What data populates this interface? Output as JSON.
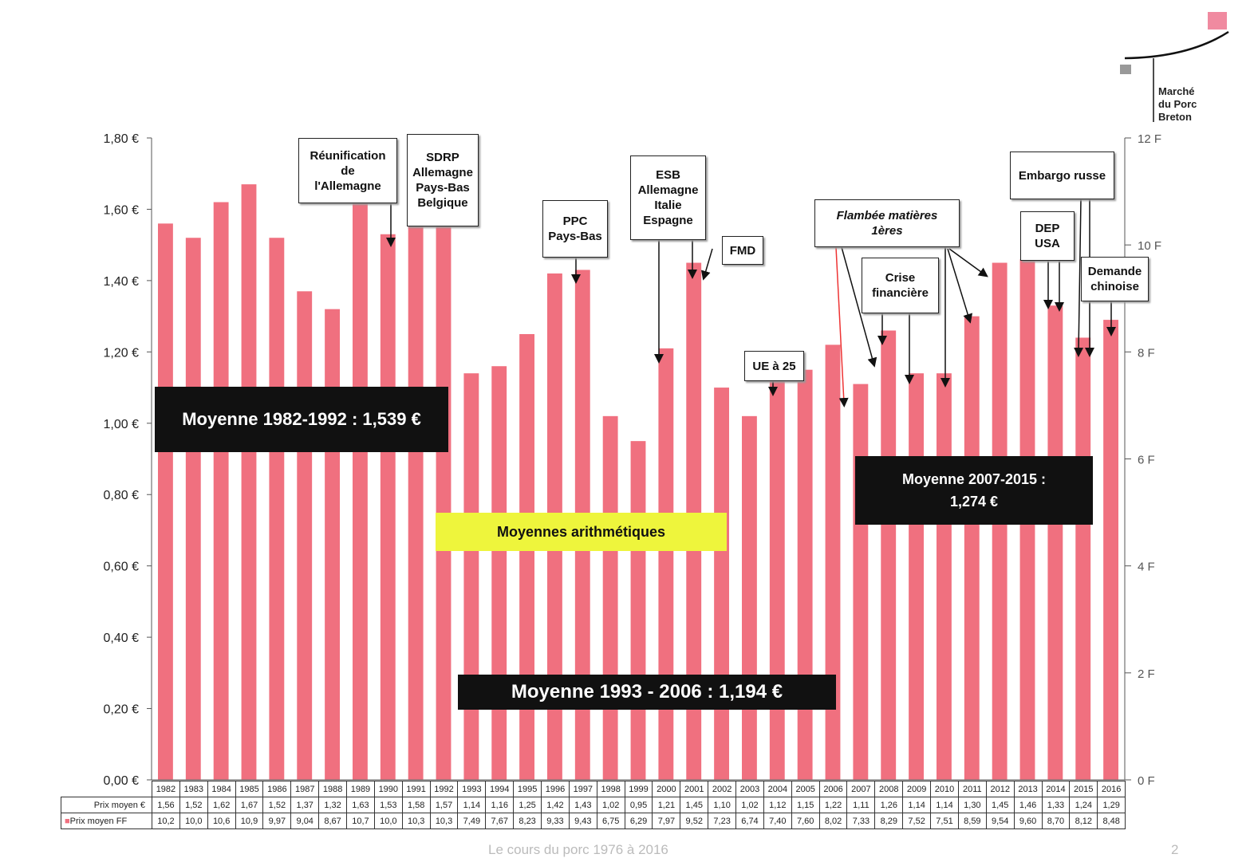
{
  "chart_data": {
    "type": "bar",
    "categories": [
      "1982",
      "1983",
      "1984",
      "1985",
      "1986",
      "1987",
      "1988",
      "1989",
      "1990",
      "1991",
      "1992",
      "1993",
      "1994",
      "1995",
      "1996",
      "1997",
      "1998",
      "1999",
      "2000",
      "2001",
      "2002",
      "2003",
      "2004",
      "2005",
      "2006",
      "2007",
      "2008",
      "2009",
      "2010",
      "2011",
      "2012",
      "2013",
      "2014",
      "2015",
      "2016"
    ],
    "series": [
      {
        "name": "Prix moyen €",
        "values_label": [
          "1,56",
          "1,52",
          "1,62",
          "1,67",
          "1,52",
          "1,37",
          "1,32",
          "1,63",
          "1,53",
          "1,58",
          "1,57",
          "1,14",
          "1,16",
          "1,25",
          "1,42",
          "1,43",
          "1,02",
          "0,95",
          "1,21",
          "1,45",
          "1,10",
          "1,02",
          "1,12",
          "1,15",
          "1,22",
          "1,11",
          "1,26",
          "1,14",
          "1,14",
          "1,30",
          "1,45",
          "1,46",
          "1,33",
          "1,24",
          "1,29"
        ],
        "values": [
          1.56,
          1.52,
          1.62,
          1.67,
          1.52,
          1.37,
          1.32,
          1.63,
          1.53,
          1.58,
          1.57,
          1.14,
          1.16,
          1.25,
          1.42,
          1.43,
          1.02,
          0.95,
          1.21,
          1.45,
          1.1,
          1.02,
          1.12,
          1.15,
          1.22,
          1.11,
          1.26,
          1.14,
          1.14,
          1.3,
          1.45,
          1.46,
          1.33,
          1.24,
          1.29
        ]
      },
      {
        "name": "Prix moyen FF",
        "values_label": [
          "10,2",
          "10,0",
          "10,6",
          "10,9",
          "9,97",
          "9,04",
          "8,67",
          "10,7",
          "10,0",
          "10,3",
          "10,3",
          "7,49",
          "7,67",
          "8,23",
          "9,33",
          "9,43",
          "6,75",
          "6,29",
          "7,97",
          "9,52",
          "7,23",
          "6,74",
          "7,40",
          "7,60",
          "8,02",
          "7,33",
          "8,29",
          "7,52",
          "7,51",
          "8,59",
          "9,54",
          "9,60",
          "8,70",
          "8,12",
          "8,48"
        ]
      }
    ],
    "ylim": [
      0,
      1.8
    ],
    "yticks": [
      "0,00 €",
      "0,20 €",
      "0,40 €",
      "0,60 €",
      "0,80 €",
      "1,00 €",
      "1,20 €",
      "1,40 €",
      "1,60 €",
      "1,80 €"
    ],
    "y2lim": [
      0,
      12
    ],
    "y2ticks": [
      "0 F",
      "2 F",
      "4 F",
      "6 F",
      "8 F",
      "10 F",
      "12 F"
    ],
    "bar_color": "#f0707f",
    "annotations": {
      "reunification": "Réunification\nde\nl'Allemagne",
      "sdrp": "SDRP\nAllemagne\nPays-Bas\nBelgique",
      "ppc": "PPC\nPays-Bas",
      "esb": "ESB\nAllemagne\nItalie\nEspagne",
      "fmd": "FMD",
      "ue25": "UE à 25",
      "flambee": "Flambée matières\n1ères",
      "crise": "Crise\nfinancière",
      "embargo": "Embargo russe",
      "dep": "DEP\nUSA",
      "demande": "Demande\nchinoise"
    },
    "averages": {
      "m1": "Moyenne 1982-1992 : 1,539 €",
      "m2": "Moyenne 1993 - 2006  : 1,194 €",
      "m3": "Moyenne 2007-2015 :\n1,274 €",
      "legend": "Moyennes arithmétiques"
    }
  },
  "logo": "Marché\ndu Porc\nBreton",
  "footer": "Le cours du porc 1976 à 2016",
  "page_number": "2"
}
